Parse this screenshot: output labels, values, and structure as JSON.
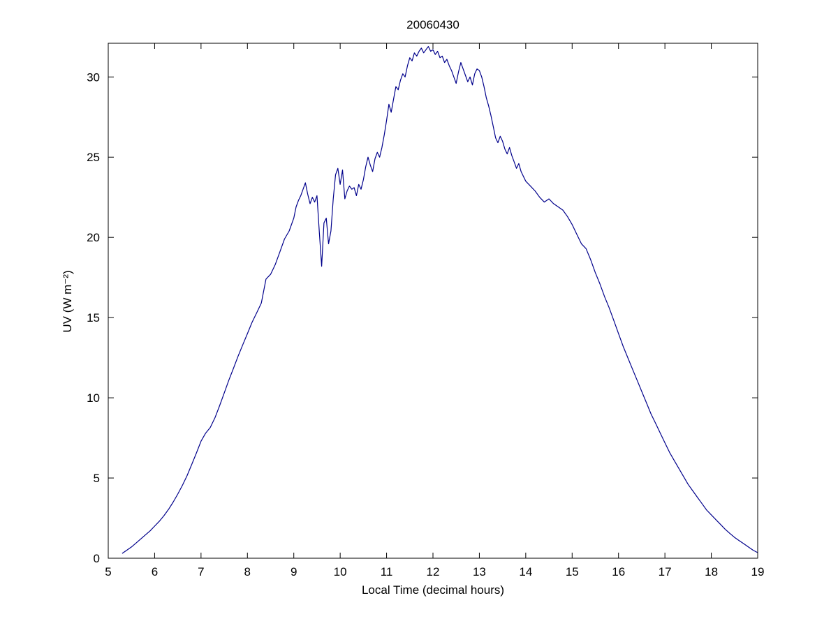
{
  "chart_data": {
    "type": "line",
    "title": "20060430",
    "xlabel": "Local Time (decimal hours)",
    "ylabel": "UV (W m⁻²)",
    "xlim": [
      5,
      19
    ],
    "ylim": [
      0,
      32.1
    ],
    "xticks": [
      5,
      6,
      7,
      8,
      9,
      10,
      11,
      12,
      13,
      14,
      15,
      16,
      17,
      18,
      19
    ],
    "yticks": [
      0,
      5,
      10,
      15,
      20,
      25,
      30
    ],
    "grid": false,
    "legend": "none",
    "line_color": "#00008B",
    "axis_color": "#000000",
    "background_color": "#ffffff",
    "points": [
      [
        5.3,
        0.3
      ],
      [
        5.4,
        0.5
      ],
      [
        5.5,
        0.7
      ],
      [
        5.6,
        0.95
      ],
      [
        5.7,
        1.2
      ],
      [
        5.8,
        1.45
      ],
      [
        5.9,
        1.7
      ],
      [
        6.0,
        2.0
      ],
      [
        6.1,
        2.3
      ],
      [
        6.2,
        2.65
      ],
      [
        6.3,
        3.05
      ],
      [
        6.4,
        3.5
      ],
      [
        6.5,
        4.0
      ],
      [
        6.6,
        4.55
      ],
      [
        6.7,
        5.15
      ],
      [
        6.8,
        5.85
      ],
      [
        6.9,
        6.55
      ],
      [
        7.0,
        7.3
      ],
      [
        7.1,
        7.8
      ],
      [
        7.2,
        8.15
      ],
      [
        7.3,
        8.75
      ],
      [
        7.4,
        9.5
      ],
      [
        7.5,
        10.3
      ],
      [
        7.6,
        11.1
      ],
      [
        7.7,
        11.85
      ],
      [
        7.8,
        12.6
      ],
      [
        7.9,
        13.3
      ],
      [
        8.0,
        14.0
      ],
      [
        8.1,
        14.7
      ],
      [
        8.2,
        15.3
      ],
      [
        8.3,
        15.9
      ],
      [
        8.4,
        17.4
      ],
      [
        8.5,
        17.7
      ],
      [
        8.6,
        18.3
      ],
      [
        8.7,
        19.1
      ],
      [
        8.8,
        19.9
      ],
      [
        8.9,
        20.4
      ],
      [
        9.0,
        21.2
      ],
      [
        9.05,
        21.9
      ],
      [
        9.1,
        22.3
      ],
      [
        9.15,
        22.6
      ],
      [
        9.2,
        23.0
      ],
      [
        9.25,
        23.4
      ],
      [
        9.3,
        22.7
      ],
      [
        9.35,
        22.1
      ],
      [
        9.4,
        22.5
      ],
      [
        9.45,
        22.2
      ],
      [
        9.5,
        22.6
      ],
      [
        9.55,
        20.3
      ],
      [
        9.6,
        18.2
      ],
      [
        9.65,
        20.9
      ],
      [
        9.7,
        21.2
      ],
      [
        9.75,
        19.6
      ],
      [
        9.8,
        20.4
      ],
      [
        9.85,
        22.4
      ],
      [
        9.9,
        23.9
      ],
      [
        9.95,
        24.3
      ],
      [
        10.0,
        23.3
      ],
      [
        10.05,
        24.2
      ],
      [
        10.1,
        22.4
      ],
      [
        10.15,
        22.9
      ],
      [
        10.2,
        23.2
      ],
      [
        10.25,
        23.0
      ],
      [
        10.3,
        23.1
      ],
      [
        10.35,
        22.6
      ],
      [
        10.4,
        23.3
      ],
      [
        10.45,
        23.0
      ],
      [
        10.5,
        23.6
      ],
      [
        10.55,
        24.4
      ],
      [
        10.6,
        25.0
      ],
      [
        10.65,
        24.5
      ],
      [
        10.7,
        24.1
      ],
      [
        10.75,
        24.9
      ],
      [
        10.8,
        25.3
      ],
      [
        10.85,
        25.0
      ],
      [
        10.9,
        25.6
      ],
      [
        10.95,
        26.4
      ],
      [
        11.0,
        27.3
      ],
      [
        11.05,
        28.3
      ],
      [
        11.1,
        27.8
      ],
      [
        11.15,
        28.6
      ],
      [
        11.2,
        29.4
      ],
      [
        11.25,
        29.2
      ],
      [
        11.3,
        29.8
      ],
      [
        11.35,
        30.2
      ],
      [
        11.4,
        30.0
      ],
      [
        11.45,
        30.7
      ],
      [
        11.5,
        31.2
      ],
      [
        11.55,
        31.0
      ],
      [
        11.6,
        31.5
      ],
      [
        11.65,
        31.3
      ],
      [
        11.7,
        31.6
      ],
      [
        11.75,
        31.8
      ],
      [
        11.8,
        31.5
      ],
      [
        11.85,
        31.7
      ],
      [
        11.9,
        31.9
      ],
      [
        11.95,
        31.6
      ],
      [
        12.0,
        31.7
      ],
      [
        12.05,
        31.4
      ],
      [
        12.1,
        31.6
      ],
      [
        12.15,
        31.2
      ],
      [
        12.2,
        31.3
      ],
      [
        12.25,
        30.9
      ],
      [
        12.3,
        31.1
      ],
      [
        12.35,
        30.7
      ],
      [
        12.4,
        30.4
      ],
      [
        12.45,
        30.0
      ],
      [
        12.5,
        29.6
      ],
      [
        12.55,
        30.3
      ],
      [
        12.6,
        30.9
      ],
      [
        12.65,
        30.5
      ],
      [
        12.7,
        30.1
      ],
      [
        12.75,
        29.7
      ],
      [
        12.8,
        30.0
      ],
      [
        12.85,
        29.5
      ],
      [
        12.9,
        30.2
      ],
      [
        12.95,
        30.5
      ],
      [
        13.0,
        30.4
      ],
      [
        13.05,
        30.0
      ],
      [
        13.1,
        29.4
      ],
      [
        13.15,
        28.7
      ],
      [
        13.2,
        28.2
      ],
      [
        13.25,
        27.6
      ],
      [
        13.3,
        26.9
      ],
      [
        13.35,
        26.2
      ],
      [
        13.4,
        25.9
      ],
      [
        13.45,
        26.3
      ],
      [
        13.5,
        26.0
      ],
      [
        13.55,
        25.5
      ],
      [
        13.6,
        25.2
      ],
      [
        13.65,
        25.6
      ],
      [
        13.7,
        25.1
      ],
      [
        13.75,
        24.7
      ],
      [
        13.8,
        24.3
      ],
      [
        13.85,
        24.6
      ],
      [
        13.9,
        24.1
      ],
      [
        13.95,
        23.8
      ],
      [
        14.0,
        23.5
      ],
      [
        14.1,
        23.2
      ],
      [
        14.2,
        22.9
      ],
      [
        14.3,
        22.5
      ],
      [
        14.4,
        22.2
      ],
      [
        14.5,
        22.4
      ],
      [
        14.6,
        22.1
      ],
      [
        14.7,
        21.9
      ],
      [
        14.8,
        21.7
      ],
      [
        14.9,
        21.3
      ],
      [
        15.0,
        20.8
      ],
      [
        15.1,
        20.2
      ],
      [
        15.2,
        19.6
      ],
      [
        15.3,
        19.3
      ],
      [
        15.4,
        18.6
      ],
      [
        15.5,
        17.8
      ],
      [
        15.6,
        17.1
      ],
      [
        15.7,
        16.3
      ],
      [
        15.8,
        15.6
      ],
      [
        15.9,
        14.8
      ],
      [
        16.0,
        14.0
      ],
      [
        16.1,
        13.2
      ],
      [
        16.2,
        12.5
      ],
      [
        16.3,
        11.8
      ],
      [
        16.4,
        11.1
      ],
      [
        16.5,
        10.4
      ],
      [
        16.6,
        9.7
      ],
      [
        16.7,
        9.0
      ],
      [
        16.8,
        8.4
      ],
      [
        16.9,
        7.8
      ],
      [
        17.0,
        7.2
      ],
      [
        17.1,
        6.6
      ],
      [
        17.2,
        6.1
      ],
      [
        17.3,
        5.6
      ],
      [
        17.4,
        5.1
      ],
      [
        17.5,
        4.6
      ],
      [
        17.6,
        4.2
      ],
      [
        17.7,
        3.8
      ],
      [
        17.8,
        3.4
      ],
      [
        17.9,
        3.0
      ],
      [
        18.0,
        2.7
      ],
      [
        18.1,
        2.4
      ],
      [
        18.2,
        2.1
      ],
      [
        18.3,
        1.8
      ],
      [
        18.4,
        1.55
      ],
      [
        18.5,
        1.3
      ],
      [
        18.6,
        1.1
      ],
      [
        18.7,
        0.9
      ],
      [
        18.8,
        0.7
      ],
      [
        18.9,
        0.5
      ],
      [
        19.0,
        0.35
      ]
    ]
  }
}
